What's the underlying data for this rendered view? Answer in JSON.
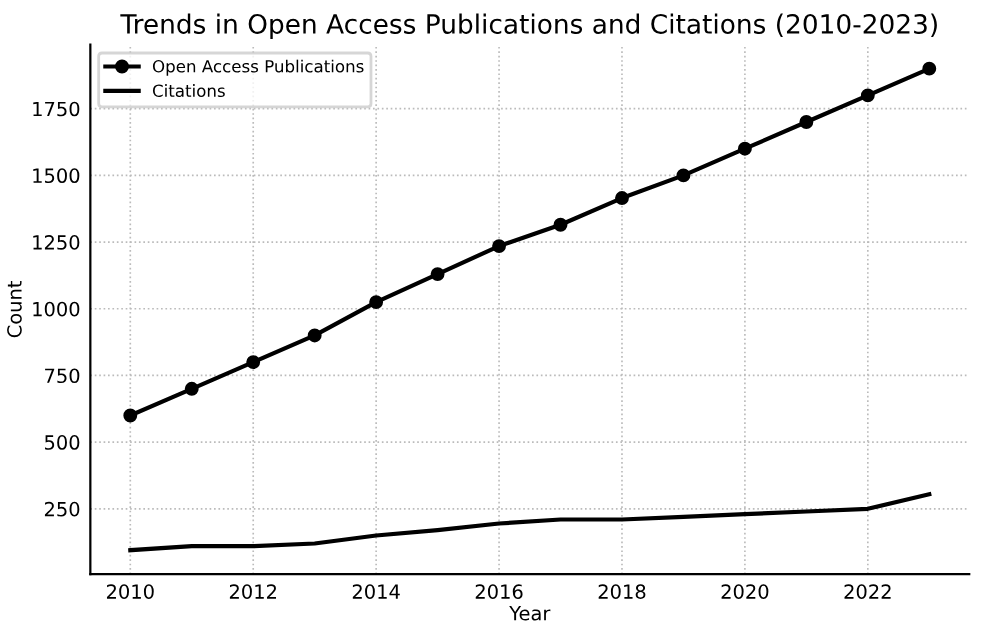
{
  "chart_data": {
    "type": "line",
    "title": "Trends in Open Access Publications and Citations (2010-2023)",
    "xlabel": "Year",
    "ylabel": "Count",
    "x": [
      2010,
      2011,
      2012,
      2013,
      2014,
      2015,
      2016,
      2017,
      2018,
      2019,
      2020,
      2021,
      2022,
      2023
    ],
    "series": [
      {
        "name": "Open Access Publications",
        "color": "#000000",
        "marker": "circle",
        "values": [
          600,
          700,
          800,
          900,
          1025,
          1130,
          1235,
          1315,
          1415,
          1500,
          1600,
          1700,
          1800,
          1900
        ]
      },
      {
        "name": "Citations",
        "color": "#000000",
        "marker": "none",
        "values": [
          95,
          110,
          110,
          120,
          150,
          170,
          195,
          210,
          210,
          220,
          230,
          240,
          250,
          305
        ]
      }
    ],
    "xlim": [
      2009.35,
      2023.65
    ],
    "xticks": [
      2010,
      2012,
      2014,
      2016,
      2018,
      2020,
      2022
    ],
    "ylim": [
      5,
      1990
    ],
    "yticks": [
      250,
      500,
      750,
      1000,
      1250,
      1500,
      1750
    ],
    "grid": true,
    "legend": "top left",
    "line_style": "solid"
  }
}
